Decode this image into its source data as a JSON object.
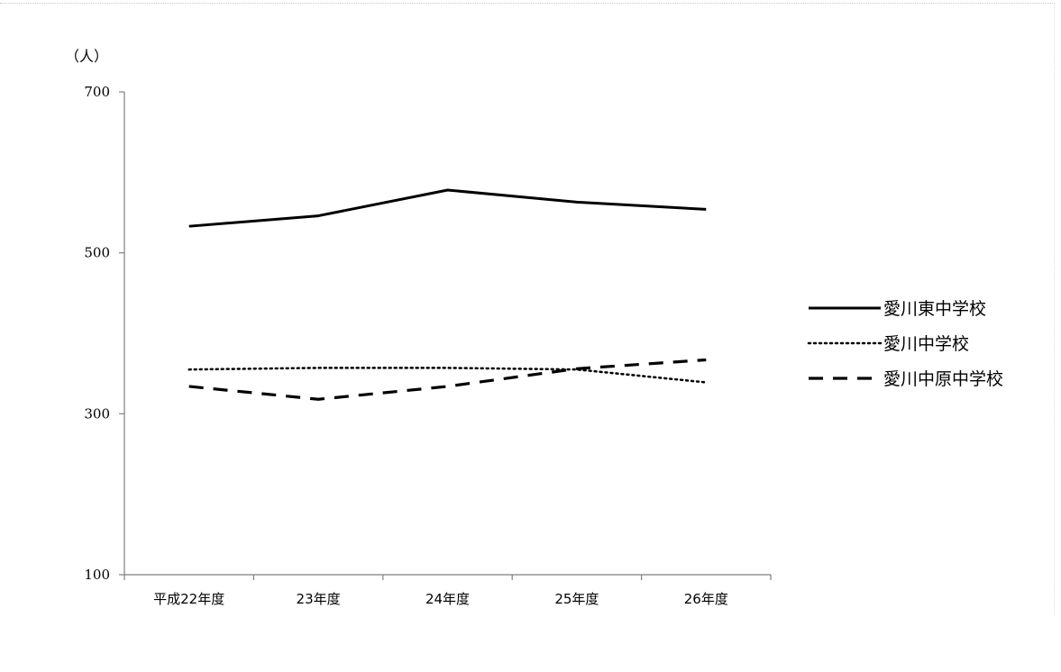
{
  "chart_data": {
    "type": "line",
    "unit_label": "（人）",
    "categories": [
      "平成22年度",
      "23年度",
      "24年度",
      "25年度",
      "26年度"
    ],
    "ylim": [
      100,
      700
    ],
    "yticks": [
      100,
      300,
      500,
      700
    ],
    "grid": false,
    "legend_position": "right",
    "series": [
      {
        "name": "愛川東中学校",
        "values": [
          533,
          546,
          578,
          563,
          554
        ],
        "style": "solid",
        "color": "#000000"
      },
      {
        "name": "愛川中学校",
        "values": [
          355,
          357,
          357,
          355,
          339
        ],
        "style": "dotted",
        "color": "#000000"
      },
      {
        "name": "愛川中原中学校",
        "values": [
          334,
          318,
          334,
          356,
          367
        ],
        "style": "dashed",
        "color": "#000000"
      }
    ]
  }
}
